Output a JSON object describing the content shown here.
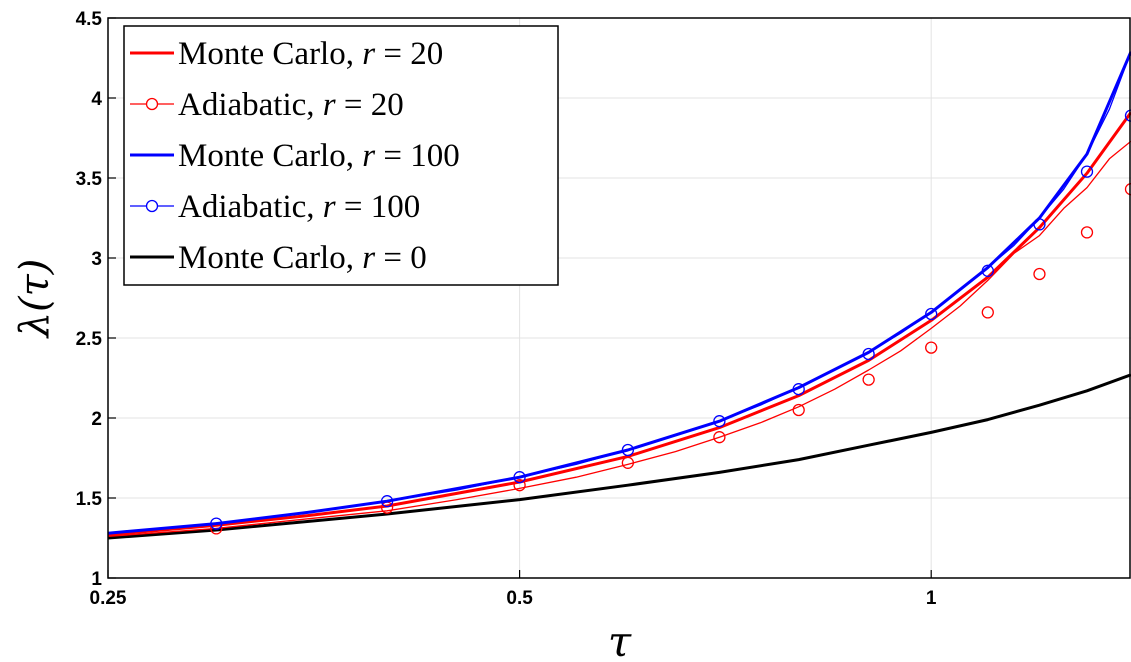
{
  "chart_data": {
    "type": "line",
    "xlabel": "τ",
    "ylabel": "λ(τ)",
    "x_scale": "log",
    "xlim": [
      0.25,
      1.4
    ],
    "ylim": [
      1,
      4.5
    ],
    "xticks": [
      {
        "value": 0.25,
        "label": "0.25"
      },
      {
        "value": 0.5,
        "label": "0.5"
      },
      {
        "value": 1,
        "label": "1"
      }
    ],
    "yticks": [
      {
        "value": 1,
        "label": "1"
      },
      {
        "value": 1.5,
        "label": "1.5"
      },
      {
        "value": 2,
        "label": "2"
      },
      {
        "value": 2.5,
        "label": "2.5"
      },
      {
        "value": 3,
        "label": "3"
      },
      {
        "value": 3.5,
        "label": "3.5"
      },
      {
        "value": 4,
        "label": "4"
      },
      {
        "value": 4.5,
        "label": "4.5"
      }
    ],
    "grid": true,
    "legend_position": "top-left",
    "series": [
      {
        "name": "Monte Carlo, r = 20",
        "legend_text": "Monte Carlo, ",
        "legend_math": "r",
        "legend_value": " = 20",
        "color": "#ff0000",
        "style": "line",
        "x": [
          0.25,
          0.3,
          0.35,
          0.4,
          0.5,
          0.6,
          0.7,
          0.8,
          0.9,
          1.0,
          1.1,
          1.2,
          1.3,
          1.4
        ],
        "y": [
          1.27,
          1.33,
          1.39,
          1.45,
          1.6,
          1.76,
          1.94,
          2.14,
          2.36,
          2.61,
          2.88,
          3.19,
          3.53,
          3.91
        ]
      },
      {
        "name": "Adiabatic, r = 20",
        "legend_text": "Adiabatic, ",
        "legend_math": "r",
        "legend_value": " = 20",
        "color": "#ff0000",
        "style": "line-circle",
        "x": [
          0.25,
          0.3,
          0.35,
          0.4,
          0.45,
          0.5,
          0.55,
          0.6,
          0.65,
          0.7,
          0.75,
          0.8,
          0.85,
          0.9,
          0.95,
          1.0,
          1.05,
          1.1,
          1.15,
          1.2,
          1.25,
          1.3,
          1.35,
          1.4
        ],
        "y": [
          1.26,
          1.31,
          1.37,
          1.42,
          1.49,
          1.56,
          1.63,
          1.71,
          1.79,
          1.88,
          1.97,
          2.07,
          2.18,
          2.3,
          2.42,
          2.56,
          2.7,
          2.86,
          3.03,
          3.14,
          3.31,
          3.44,
          3.62,
          3.73
        ],
        "markers_x": [
          0.3,
          0.4,
          0.5,
          0.6,
          0.7,
          0.8,
          0.9,
          1.0,
          1.1,
          1.2,
          1.3,
          1.4
        ],
        "markers_y": [
          1.31,
          1.44,
          1.58,
          1.72,
          1.88,
          2.05,
          2.24,
          2.44,
          2.66,
          2.9,
          3.16,
          3.43
        ]
      },
      {
        "name": "Monte Carlo, r = 100",
        "legend_text": "Monte Carlo, ",
        "legend_math": "r",
        "legend_value": " = 100",
        "color": "#0000ff",
        "style": "line",
        "x": [
          0.25,
          0.3,
          0.35,
          0.4,
          0.5,
          0.6,
          0.7,
          0.8,
          0.9,
          1.0,
          1.1,
          1.2,
          1.3,
          1.4
        ],
        "y": [
          1.28,
          1.34,
          1.41,
          1.48,
          1.63,
          1.8,
          1.98,
          2.19,
          2.41,
          2.66,
          2.94,
          3.25,
          3.65,
          4.29
        ]
      },
      {
        "name": "Adiabatic, r = 100",
        "legend_text": "Adiabatic, ",
        "legend_math": "r",
        "legend_value": " = 100",
        "color": "#0000ff",
        "style": "line-circle",
        "x": [
          0.25,
          0.3,
          0.35,
          0.4,
          0.45,
          0.5,
          0.55,
          0.6,
          0.65,
          0.7,
          0.75,
          0.8,
          0.85,
          0.9,
          0.95,
          1.0,
          1.05,
          1.1,
          1.15,
          1.2,
          1.25,
          1.3,
          1.35,
          1.4
        ],
        "y": [
          1.28,
          1.34,
          1.41,
          1.48,
          1.55,
          1.63,
          1.71,
          1.8,
          1.89,
          1.98,
          2.08,
          2.19,
          2.3,
          2.41,
          2.53,
          2.66,
          2.8,
          2.94,
          3.08,
          3.25,
          3.43,
          3.65,
          3.93,
          4.29
        ],
        "markers_x": [
          0.3,
          0.4,
          0.5,
          0.6,
          0.7,
          0.8,
          0.9,
          1.0,
          1.1,
          1.2,
          1.3,
          1.4
        ],
        "markers_y": [
          1.34,
          1.48,
          1.63,
          1.8,
          1.98,
          2.18,
          2.4,
          2.65,
          2.92,
          3.21,
          3.54,
          3.89
        ]
      },
      {
        "name": "Monte Carlo, r = 0",
        "legend_text": "Monte Carlo, ",
        "legend_math": "r",
        "legend_value": " = 0",
        "color": "#000000",
        "style": "line",
        "x": [
          0.25,
          0.3,
          0.4,
          0.5,
          0.6,
          0.7,
          0.8,
          0.9,
          1.0,
          1.1,
          1.2,
          1.3,
          1.4
        ],
        "y": [
          1.25,
          1.3,
          1.4,
          1.49,
          1.58,
          1.66,
          1.74,
          1.83,
          1.91,
          1.99,
          2.08,
          2.17,
          2.27
        ]
      }
    ]
  }
}
